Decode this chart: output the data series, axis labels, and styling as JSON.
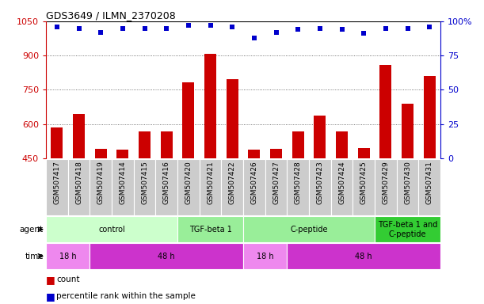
{
  "title": "GDS3649 / ILMN_2370208",
  "samples": [
    "GSM507417",
    "GSM507418",
    "GSM507419",
    "GSM507414",
    "GSM507415",
    "GSM507416",
    "GSM507420",
    "GSM507421",
    "GSM507422",
    "GSM507426",
    "GSM507427",
    "GSM507428",
    "GSM507423",
    "GSM507424",
    "GSM507425",
    "GSM507429",
    "GSM507430",
    "GSM507431"
  ],
  "counts": [
    585,
    643,
    491,
    488,
    568,
    568,
    783,
    907,
    798,
    488,
    493,
    568,
    637,
    568,
    496,
    858,
    688,
    810
  ],
  "percentile_ranks": [
    96,
    95,
    92,
    95,
    95,
    95,
    97,
    97,
    96,
    88,
    92,
    94,
    95,
    94,
    91,
    95,
    95,
    96
  ],
  "ylim_left": [
    450,
    1050
  ],
  "ylim_right": [
    0,
    100
  ],
  "yticks_left": [
    450,
    600,
    750,
    900,
    1050
  ],
  "yticks_right": [
    0,
    25,
    50,
    75,
    100
  ],
  "left_color": "#cc0000",
  "right_color": "#0000cc",
  "bar_color": "#cc0000",
  "dot_color": "#0000cc",
  "agent_groups": [
    {
      "label": "control",
      "start": 0,
      "end": 6,
      "color": "#ccffcc"
    },
    {
      "label": "TGF-beta 1",
      "start": 6,
      "end": 9,
      "color": "#99ee99"
    },
    {
      "label": "C-peptide",
      "start": 9,
      "end": 15,
      "color": "#99ee99"
    },
    {
      "label": "TGF-beta 1 and\nC-peptide",
      "start": 15,
      "end": 18,
      "color": "#33cc33"
    }
  ],
  "time_groups": [
    {
      "label": "18 h",
      "start": 0,
      "end": 2,
      "color": "#ee77ee"
    },
    {
      "label": "48 h",
      "start": 2,
      "end": 9,
      "color": "#cc33cc"
    },
    {
      "label": "18 h",
      "start": 9,
      "end": 11,
      "color": "#ee77ee"
    },
    {
      "label": "48 h",
      "start": 11,
      "end": 18,
      "color": "#cc33cc"
    }
  ],
  "grid_color": "#000000",
  "bg_color": "#ffffff",
  "xlabel_bg": "#cccccc"
}
